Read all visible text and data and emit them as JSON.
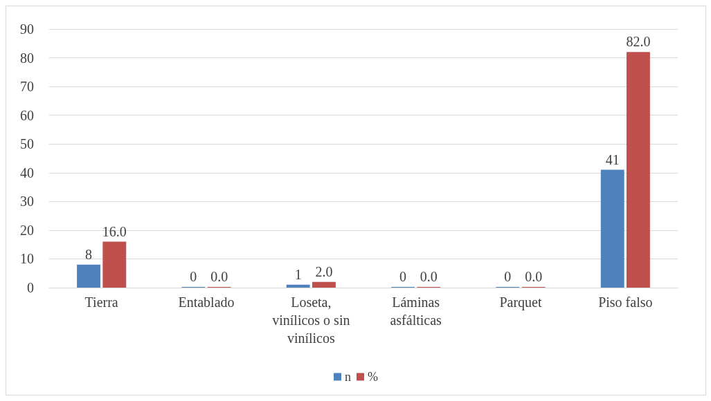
{
  "chart_data": {
    "type": "bar",
    "categories": [
      "Tierra",
      "Entablado",
      "Loseta, vinílicos o sin vinílicos",
      "Láminas asfálticas",
      "Parquet",
      "Piso falso"
    ],
    "series": [
      {
        "name": "n",
        "color": "#4f81bd",
        "values": [
          8,
          0,
          1,
          0,
          0,
          41
        ],
        "value_labels": [
          "8",
          "0",
          "1",
          "0",
          "0",
          "41"
        ]
      },
      {
        "name": "%",
        "color": "#c0504d",
        "values": [
          16.0,
          0.0,
          2.0,
          0.0,
          0.0,
          82.0
        ],
        "value_labels": [
          "16.0",
          "0.0",
          "2.0",
          "0.0",
          "0.0",
          "82.0"
        ]
      }
    ],
    "ylim": [
      0,
      90
    ],
    "yticks": [
      0,
      10,
      20,
      30,
      40,
      50,
      60,
      70,
      80,
      90
    ],
    "grid": "y",
    "legend": "bottom"
  }
}
